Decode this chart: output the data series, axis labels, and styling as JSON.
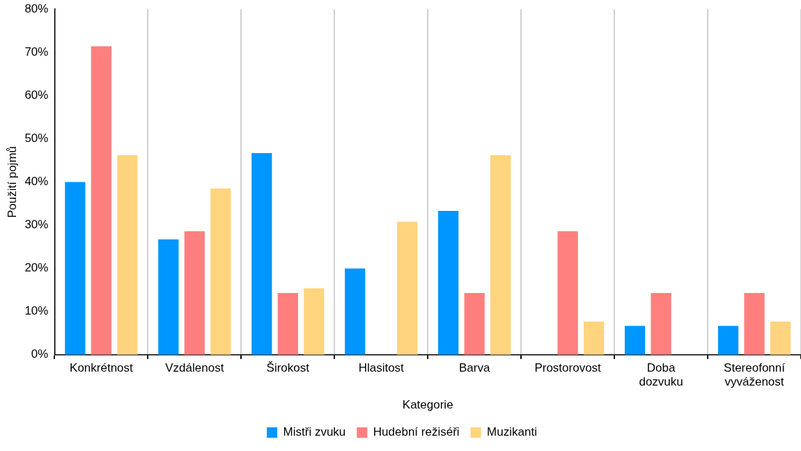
{
  "chart_data": {
    "type": "bar",
    "xlabel": "Kategorie",
    "ylabel": "Použití pojmů",
    "categories": [
      "Konkrétnost",
      "Vzdálenost",
      "Širokost",
      "Hlasitost",
      "Barva",
      "Prostorovost",
      "Doba dozvuku",
      "Stereofonní vyváženost"
    ],
    "series": [
      {
        "name": "Mistři zvuku",
        "color": "#0096ff",
        "values": [
          40,
          26.7,
          46.7,
          20,
          33.3,
          0,
          6.7,
          6.7
        ]
      },
      {
        "name": "Hudební režiséři",
        "color": "#ff7f7f",
        "values": [
          71.4,
          28.6,
          14.3,
          0,
          14.3,
          28.6,
          14.3,
          14.3
        ]
      },
      {
        "name": "Muzikanti",
        "color": "#ffd47f",
        "values": [
          46.2,
          38.5,
          15.4,
          30.8,
          46.2,
          7.7,
          0,
          7.7
        ]
      }
    ],
    "ylim": [
      0,
      80
    ],
    "yticks": [
      {
        "value": 0,
        "label": "0%"
      },
      {
        "value": 10,
        "label": "10%"
      },
      {
        "value": 20,
        "label": "20%"
      },
      {
        "value": 30,
        "label": "30%"
      },
      {
        "value": 40,
        "label": "40%"
      },
      {
        "value": 50,
        "label": "50%"
      },
      {
        "value": 60,
        "label": "60%"
      },
      {
        "value": 70,
        "label": "70%"
      },
      {
        "value": 80,
        "label": "80%"
      }
    ],
    "grid": "x",
    "legend": "bottom"
  }
}
